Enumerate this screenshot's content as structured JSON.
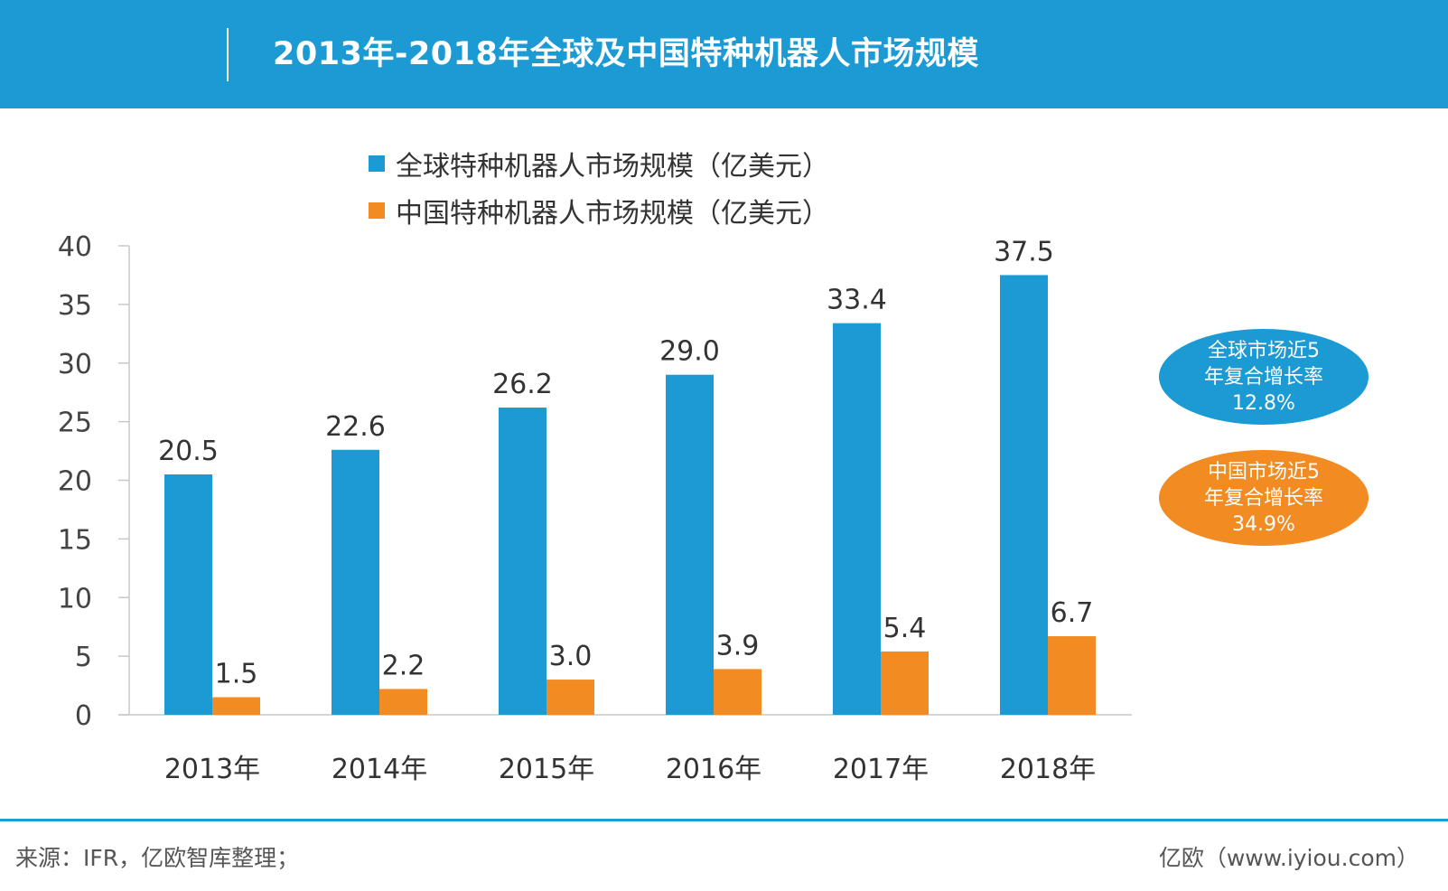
{
  "header": {
    "title": "2013年-2018年全球及中国特种机器人市场规模",
    "background": "#1b9ad3"
  },
  "chart_data": {
    "type": "bar",
    "categories": [
      "2013年",
      "2014年",
      "2015年",
      "2016年",
      "2017年",
      "2018年"
    ],
    "series": [
      {
        "name": "全球特种机器人市场规模（亿美元）",
        "color": "#1b9ad3",
        "values": [
          20.5,
          22.6,
          26.2,
          29.0,
          33.4,
          37.5
        ],
        "labels": [
          "20.5",
          "22.6",
          "26.2",
          "29.0",
          "33.4",
          "37.5"
        ]
      },
      {
        "name": "中国特种机器人市场规模（亿美元）",
        "color": "#f28b21",
        "values": [
          1.5,
          2.2,
          3.0,
          3.9,
          5.4,
          6.7
        ],
        "labels": [
          "1.5",
          "2.2",
          "3.0",
          "3.9",
          "5.4",
          "6.7"
        ]
      }
    ],
    "ylim": [
      0,
      40
    ],
    "yticks": [
      0,
      5,
      10,
      15,
      20,
      25,
      30,
      35,
      40
    ],
    "legend_position": "top",
    "grid": false
  },
  "annotations": {
    "global": {
      "lines": [
        "全球市场近5",
        "年复合增长率",
        "12.8%"
      ],
      "color": "#1b9ad3"
    },
    "china": {
      "lines": [
        "中国市场近5",
        "年复合增长率",
        "34.9%"
      ],
      "color": "#f28b21"
    }
  },
  "footer": {
    "source": "来源：IFR，亿欧智库整理；",
    "brand": "亿欧（www.iyiou.com）"
  }
}
